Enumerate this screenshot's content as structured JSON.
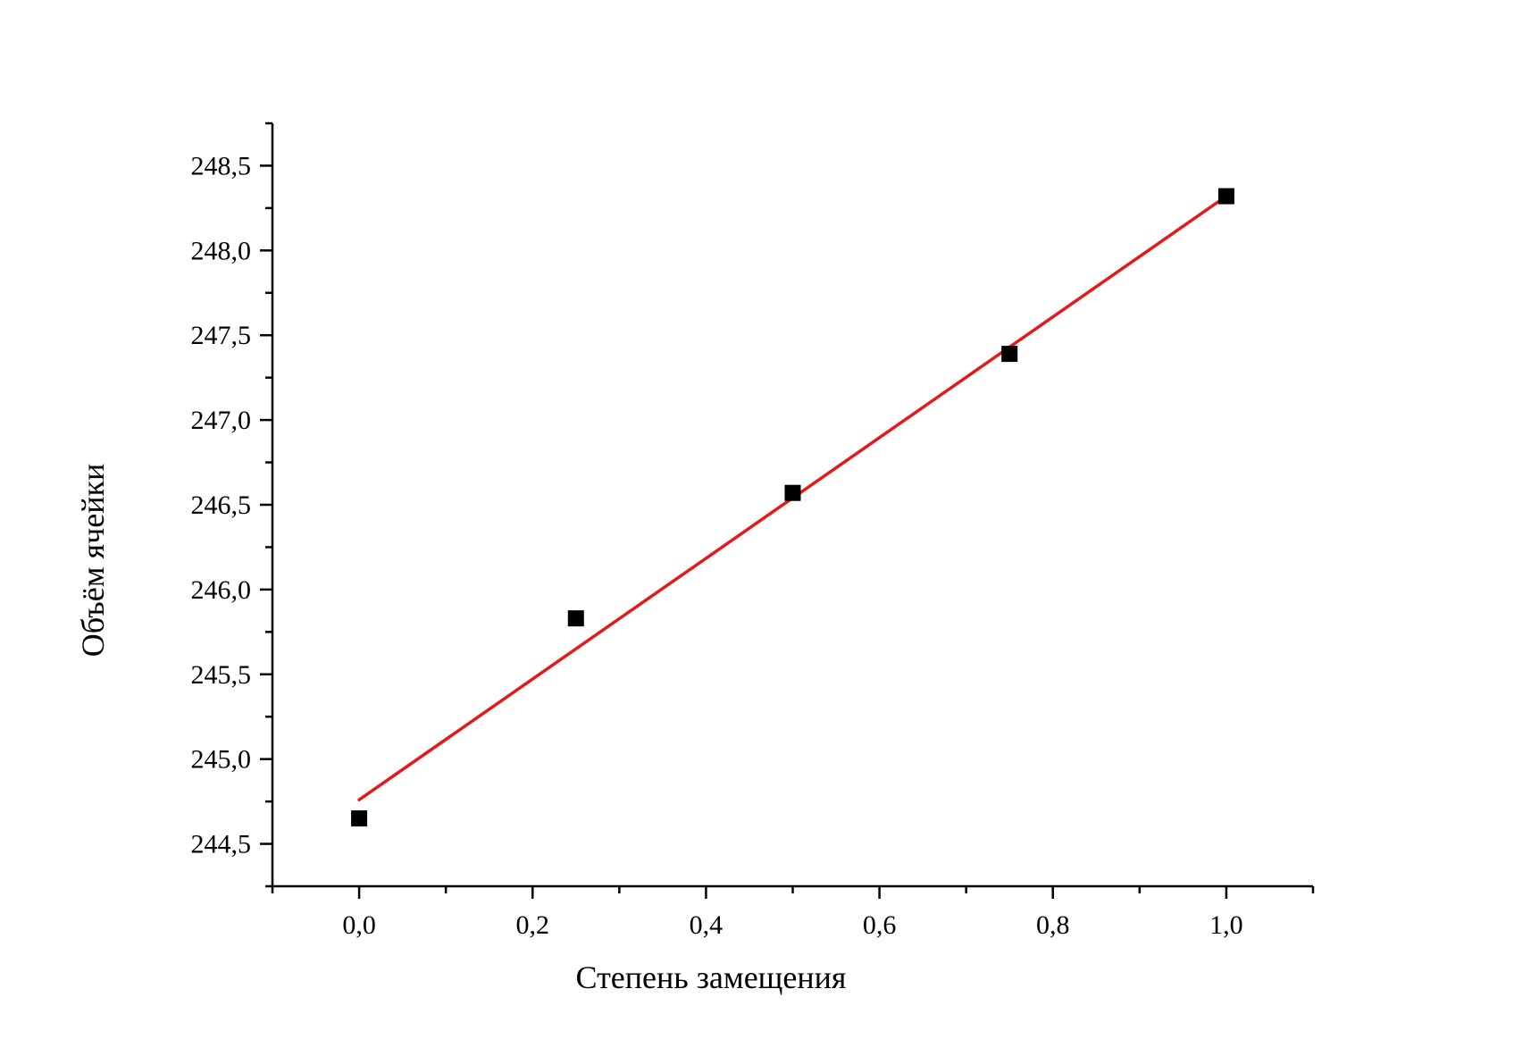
{
  "chart_data": {
    "type": "scatter",
    "xlabel": "Степень замещения",
    "ylabel": "Объём ячейки",
    "xlim": [
      -0.1,
      1.1
    ],
    "ylim": [
      244.25,
      248.75
    ],
    "x_major_ticks": [
      0.0,
      0.2,
      0.4,
      0.6,
      0.8,
      1.0
    ],
    "x_tick_labels": [
      "0,0",
      "0,2",
      "0,4",
      "0,6",
      "0,8",
      "1,0"
    ],
    "y_major_ticks": [
      244.5,
      245.0,
      245.5,
      246.0,
      246.5,
      247.0,
      247.5,
      248.0,
      248.5
    ],
    "y_tick_labels": [
      "244,5",
      "245,0",
      "245,5",
      "246,0",
      "246,5",
      "247,0",
      "247,5",
      "248,0",
      "248,5"
    ],
    "series": [
      {
        "marker": "square",
        "color": "#000000",
        "x": [
          0.0,
          0.25,
          0.5,
          0.75,
          1.0
        ],
        "y": [
          244.65,
          245.83,
          246.57,
          247.39,
          248.32
        ]
      }
    ],
    "fit_line": {
      "color": "#e31a1c",
      "x": [
        0.0,
        1.0
      ],
      "y": [
        244.76,
        248.32
      ]
    },
    "grid": false,
    "legend": "none"
  }
}
